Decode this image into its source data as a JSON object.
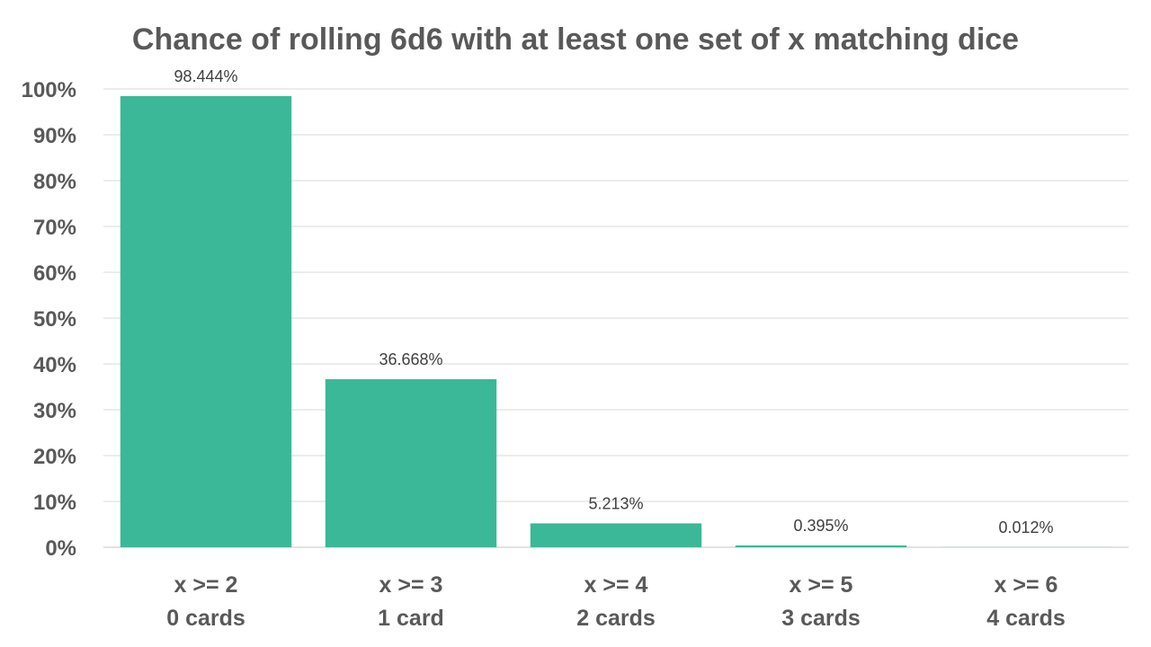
{
  "chart_data": {
    "type": "bar",
    "title": "Chance of rolling 6d6 with at least one set of x matching dice",
    "categories": [
      [
        "x >= 2",
        "0 cards"
      ],
      [
        "x >= 3",
        "1 card"
      ],
      [
        "x >= 4",
        "2 cards"
      ],
      [
        "x >= 5",
        "3 cards"
      ],
      [
        "x >= 6",
        "4 cards"
      ]
    ],
    "values": [
      98.444,
      36.668,
      5.213,
      0.395,
      0.012
    ],
    "data_labels": [
      "98.444%",
      "36.668%",
      "5.213%",
      "0.395%",
      "0.012%"
    ],
    "y_ticks": [
      "0%",
      "10%",
      "20%",
      "30%",
      "40%",
      "50%",
      "60%",
      "70%",
      "80%",
      "90%",
      "100%"
    ],
    "ylim": [
      0,
      100
    ],
    "xlabel": "",
    "ylabel": "",
    "grid": true,
    "legend": "none",
    "colors": {
      "bar": "#3bb897",
      "title": "#595959",
      "tick": "#595959",
      "data_label": "#404040",
      "grid": "#d9d9d9"
    }
  }
}
